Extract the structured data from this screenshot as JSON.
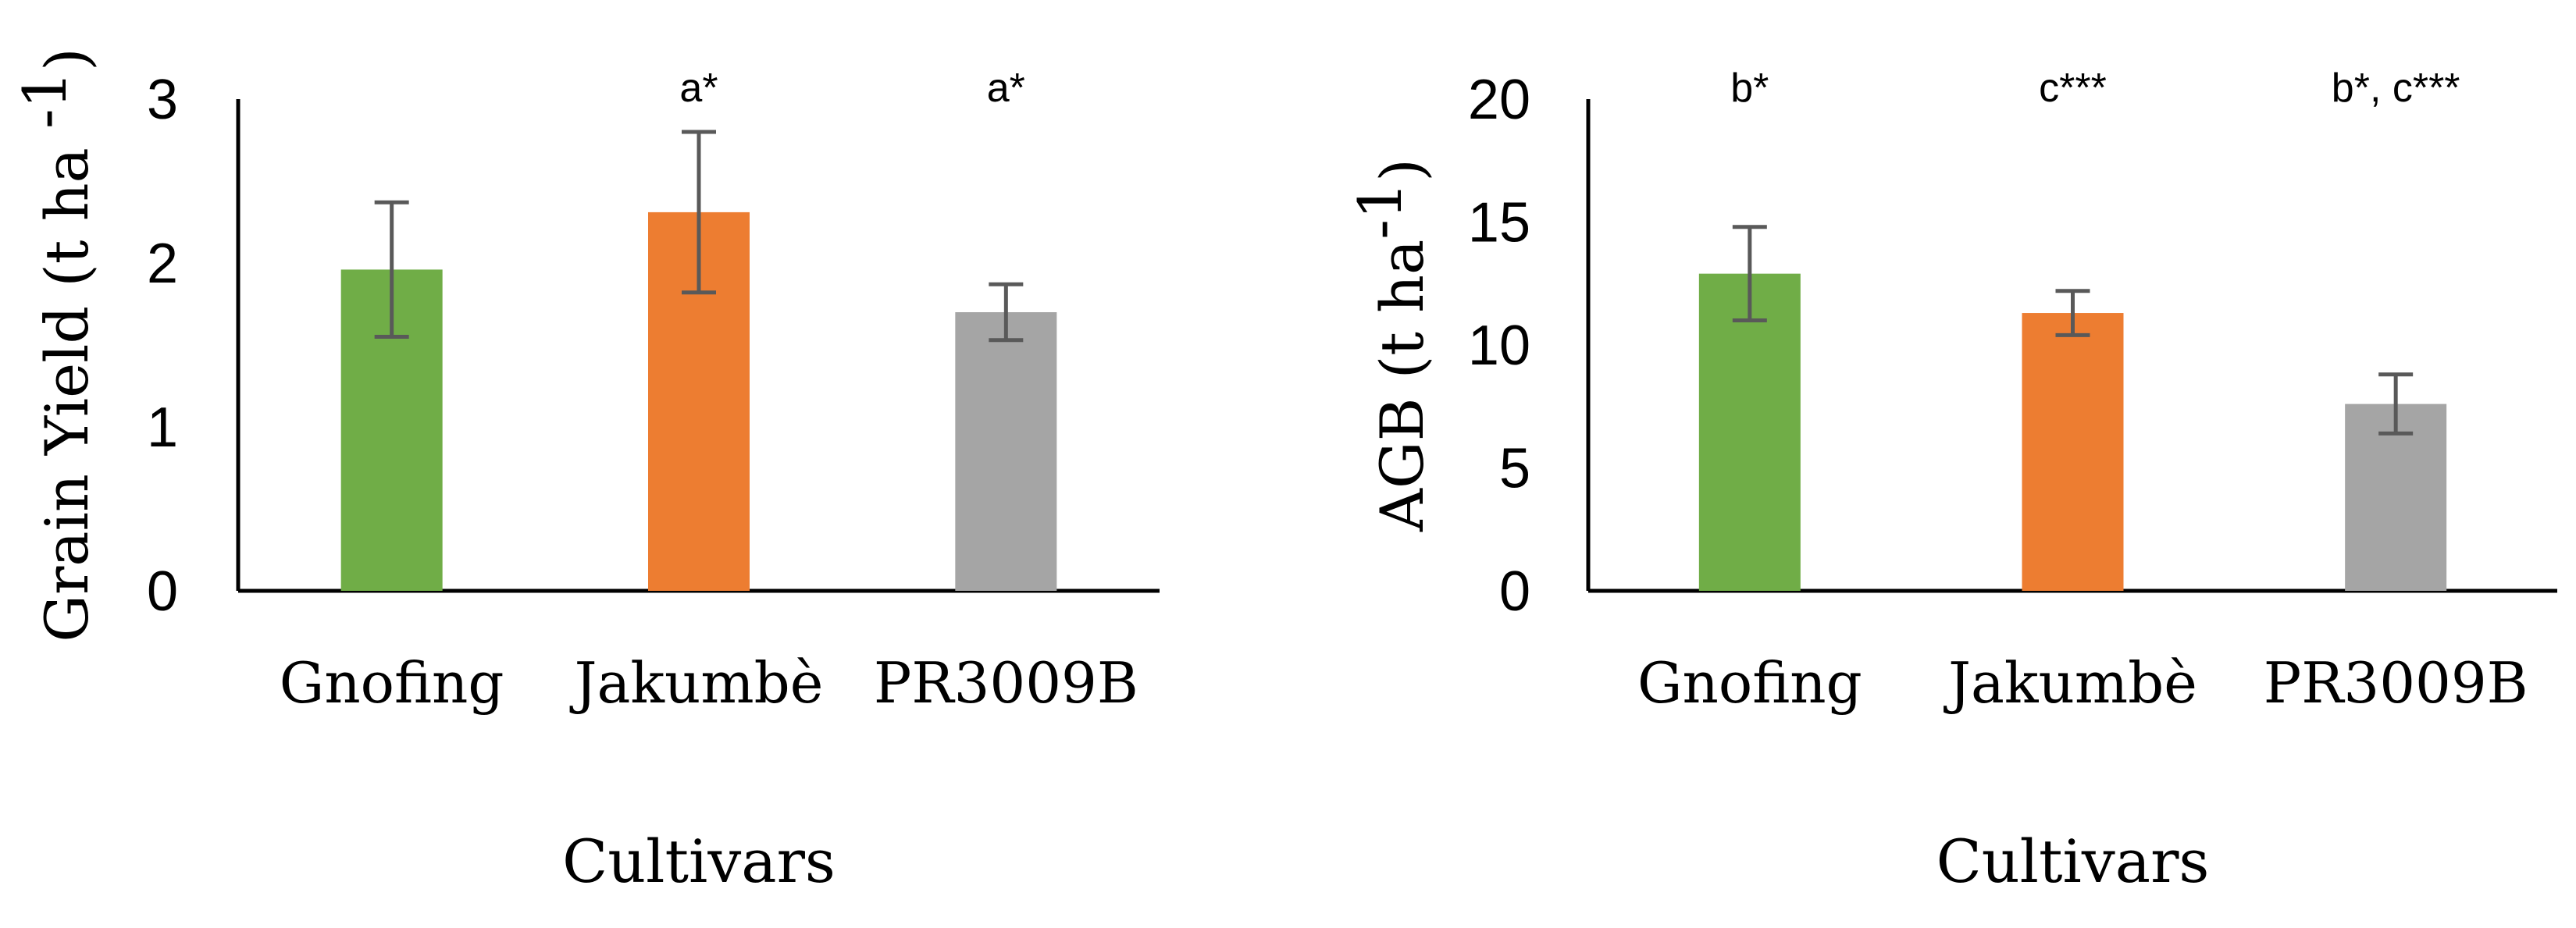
{
  "chart_data": [
    {
      "type": "bar",
      "categories": [
        "Gnofing",
        "Jakumbè",
        "PR3009B"
      ],
      "values": [
        1.96,
        2.31,
        1.7
      ],
      "errors": [
        0.41,
        0.49,
        0.17
      ],
      "annotations": [
        "",
        "a*",
        "a*"
      ],
      "ylabel": "Grain Yield (t ha -1)",
      "ylabel_main": "Grain Yield (t ha ",
      "ylabel_sup": "-1",
      "ylabel_end": ")",
      "xlabel": "Cultivars",
      "ylim": [
        0,
        3
      ],
      "yticks": [
        0,
        1,
        2,
        3
      ],
      "grid": false,
      "bar_colors": [
        "#70ad47",
        "#ed7d31",
        "#a5a5a5"
      ],
      "error_color": "#595959"
    },
    {
      "type": "bar",
      "categories": [
        "Gnofing",
        "Jakumbè",
        "PR3009B"
      ],
      "values": [
        12.9,
        11.3,
        7.6
      ],
      "errors": [
        1.9,
        0.9,
        1.2
      ],
      "annotations": [
        "b*",
        "c***",
        "b*, c***"
      ],
      "ylabel": "AGB (t ha-1)",
      "ylabel_main": "AGB (t ha",
      "ylabel_sup": "-1",
      "ylabel_end": ")",
      "xlabel": "Cultivars",
      "ylim": [
        0,
        20
      ],
      "yticks": [
        0,
        5,
        10,
        15,
        20
      ],
      "grid": false,
      "bar_colors": [
        "#70ad47",
        "#ed7d31",
        "#a5a5a5"
      ],
      "error_color": "#595959"
    }
  ]
}
